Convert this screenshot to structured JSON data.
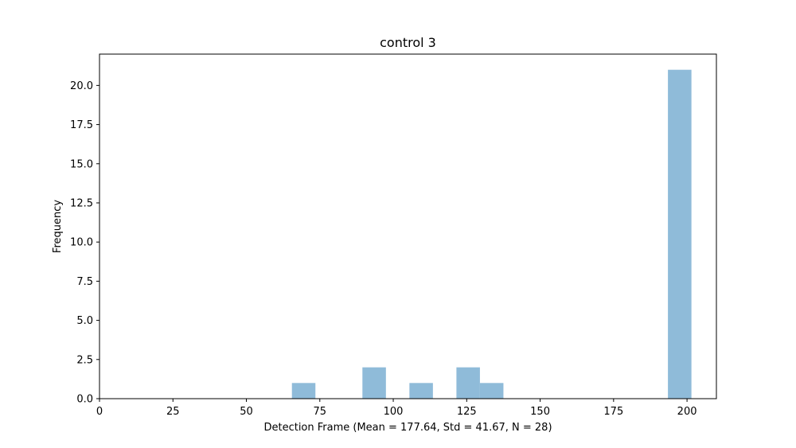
{
  "chart_data": {
    "type": "bar",
    "title": "control 3",
    "xlabel": "Detection Frame (Mean = 177.64, Std = 41.67, N = 28)",
    "ylabel": "Frequency",
    "xlim": [
      0,
      210
    ],
    "ylim": [
      0,
      22
    ],
    "xticks": [
      0,
      25,
      50,
      75,
      100,
      125,
      150,
      175,
      200
    ],
    "yticks": [
      "0.0",
      "2.5",
      "5.0",
      "7.5",
      "10.0",
      "12.5",
      "15.0",
      "17.5",
      "20.0"
    ],
    "bar_color": "#8fbbd9",
    "bins": [
      {
        "x0": 65.5,
        "x1": 73.5,
        "count": 1
      },
      {
        "x0": 89.5,
        "x1": 97.5,
        "count": 2
      },
      {
        "x0": 105.5,
        "x1": 113.5,
        "count": 1
      },
      {
        "x0": 121.5,
        "x1": 129.5,
        "count": 2
      },
      {
        "x0": 129.5,
        "x1": 137.5,
        "count": 1
      },
      {
        "x0": 193.5,
        "x1": 201.5,
        "count": 21
      }
    ],
    "grid": false,
    "legend": "none"
  }
}
